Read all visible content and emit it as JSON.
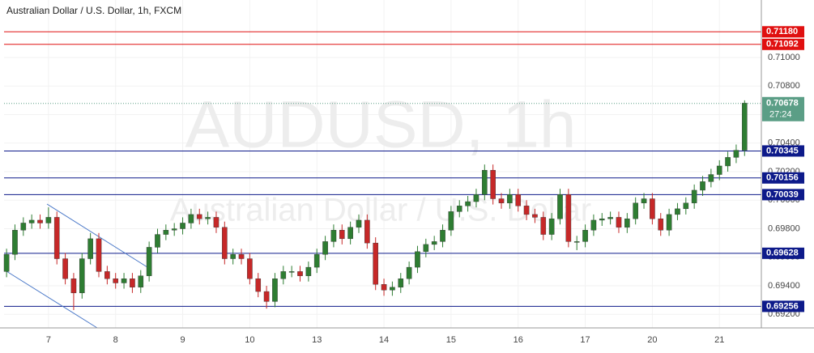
{
  "chart_data": {
    "type": "candlestick",
    "title": "Australian Dollar / U.S. Dollar, 1h, FXCM",
    "watermark": "AUDUSD, 1h",
    "watermark_subtitle": "Australian Dollar / U.S. Dollar",
    "up_color": "#2e7d32",
    "down_color": "#c62828",
    "ylim": [
      0.69105,
      0.71403
    ],
    "xlim": [
      -0.3,
      90
    ],
    "yticks": [
      {
        "value": 0.692,
        "label": "0.69200"
      },
      {
        "value": 0.694,
        "label": "0.69400"
      },
      {
        "value": 0.696,
        "label": "0.69600"
      },
      {
        "value": 0.698,
        "label": "0.69800"
      },
      {
        "value": 0.7,
        "label": "0.70000"
      },
      {
        "value": 0.702,
        "label": "0.70200"
      },
      {
        "value": 0.704,
        "label": "0.70400"
      },
      {
        "value": 0.706,
        "label": "0.70600"
      },
      {
        "value": 0.708,
        "label": "0.70800"
      },
      {
        "value": 0.71,
        "label": "0.71000"
      }
    ],
    "xticks": [
      {
        "value": 5,
        "label": "7"
      },
      {
        "value": 13,
        "label": "8"
      },
      {
        "value": 21,
        "label": "9"
      },
      {
        "value": 29,
        "label": "10"
      },
      {
        "value": 37,
        "label": "13"
      },
      {
        "value": 45,
        "label": "14"
      },
      {
        "value": 53,
        "label": "15"
      },
      {
        "value": 61,
        "label": "16"
      },
      {
        "value": 69,
        "label": "17"
      },
      {
        "value": 77,
        "label": "20"
      },
      {
        "value": 85,
        "label": "21"
      }
    ],
    "levels": [
      {
        "value": 0.7118,
        "label": "0.71180",
        "color": "#e01010"
      },
      {
        "value": 0.71092,
        "label": "0.71092",
        "color": "#e01010"
      },
      {
        "value": 0.70345,
        "label": "0.70345",
        "color": "#0d1a8a"
      },
      {
        "value": 0.70156,
        "label": "0.70156",
        "color": "#0d1a8a"
      },
      {
        "value": 0.70039,
        "label": "0.70039",
        "color": "#0d1a8a"
      },
      {
        "value": 0.69628,
        "label": "0.69628",
        "color": "#0d1a8a"
      },
      {
        "value": 0.69256,
        "label": "0.69256",
        "color": "#0d1a8a"
      }
    ],
    "last_price": {
      "value": 0.70678,
      "label": "0.70678",
      "countdown": "27:24",
      "color": "#5b9e86"
    },
    "ohlc": [
      [
        0.695,
        0.6966,
        0.6946,
        0.6962
      ],
      [
        0.6962,
        0.6983,
        0.6958,
        0.6979
      ],
      [
        0.6979,
        0.6988,
        0.6975,
        0.6984
      ],
      [
        0.6984,
        0.699,
        0.698,
        0.6986
      ],
      [
        0.6986,
        0.699,
        0.698,
        0.6984
      ],
      [
        0.6984,
        0.6995,
        0.698,
        0.6988
      ],
      [
        0.6988,
        0.6992,
        0.6955,
        0.6959
      ],
      [
        0.6959,
        0.6963,
        0.6941,
        0.6945
      ],
      [
        0.6945,
        0.6949,
        0.6923,
        0.6935
      ],
      [
        0.6935,
        0.6963,
        0.6931,
        0.6959
      ],
      [
        0.6959,
        0.6977,
        0.6955,
        0.6973
      ],
      [
        0.6973,
        0.6977,
        0.6946,
        0.695
      ],
      [
        0.695,
        0.6954,
        0.6941,
        0.6945
      ],
      [
        0.6945,
        0.6949,
        0.6938,
        0.6942
      ],
      [
        0.6942,
        0.6949,
        0.6938,
        0.6945
      ],
      [
        0.6945,
        0.6949,
        0.6935,
        0.6939
      ],
      [
        0.6939,
        0.6951,
        0.6935,
        0.6947
      ],
      [
        0.6947,
        0.6971,
        0.6943,
        0.6967
      ],
      [
        0.6967,
        0.698,
        0.6963,
        0.6976
      ],
      [
        0.6976,
        0.6983,
        0.6972,
        0.6979
      ],
      [
        0.6979,
        0.6984,
        0.6975,
        0.698
      ],
      [
        0.698,
        0.6988,
        0.6976,
        0.6984
      ],
      [
        0.6984,
        0.6994,
        0.698,
        0.699
      ],
      [
        0.699,
        0.6994,
        0.6983,
        0.6987
      ],
      [
        0.6987,
        0.6992,
        0.6983,
        0.6988
      ],
      [
        0.6988,
        0.6992,
        0.6977,
        0.6981
      ],
      [
        0.6981,
        0.6985,
        0.6955,
        0.6959
      ],
      [
        0.6959,
        0.6966,
        0.6955,
        0.6962
      ],
      [
        0.6962,
        0.6966,
        0.6955,
        0.6959
      ],
      [
        0.6959,
        0.6963,
        0.6941,
        0.6945
      ],
      [
        0.6945,
        0.6949,
        0.6932,
        0.6936
      ],
      [
        0.6936,
        0.694,
        0.6924,
        0.6929
      ],
      [
        0.6929,
        0.6949,
        0.6925,
        0.6945
      ],
      [
        0.6945,
        0.6954,
        0.6941,
        0.695
      ],
      [
        0.695,
        0.6954,
        0.6946,
        0.695
      ],
      [
        0.695,
        0.6954,
        0.6943,
        0.6947
      ],
      [
        0.6947,
        0.6957,
        0.6943,
        0.6953
      ],
      [
        0.6953,
        0.6966,
        0.6949,
        0.6962
      ],
      [
        0.6962,
        0.6975,
        0.6958,
        0.6971
      ],
      [
        0.6971,
        0.6983,
        0.6967,
        0.6979
      ],
      [
        0.6979,
        0.6983,
        0.6969,
        0.6973
      ],
      [
        0.6973,
        0.6985,
        0.6969,
        0.6981
      ],
      [
        0.6981,
        0.699,
        0.6977,
        0.6986
      ],
      [
        0.6986,
        0.699,
        0.6966,
        0.697
      ],
      [
        0.697,
        0.6974,
        0.6937,
        0.6941
      ],
      [
        0.6941,
        0.6945,
        0.6933,
        0.6937
      ],
      [
        0.6937,
        0.6943,
        0.6933,
        0.6939
      ],
      [
        0.6939,
        0.6949,
        0.6935,
        0.6945
      ],
      [
        0.6945,
        0.6957,
        0.6941,
        0.6953
      ],
      [
        0.6953,
        0.6968,
        0.6949,
        0.6964
      ],
      [
        0.6964,
        0.6973,
        0.696,
        0.6969
      ],
      [
        0.6969,
        0.6975,
        0.6965,
        0.6971
      ],
      [
        0.6971,
        0.6983,
        0.6967,
        0.6979
      ],
      [
        0.6979,
        0.6996,
        0.6975,
        0.6992
      ],
      [
        0.6992,
        0.7,
        0.6988,
        0.6996
      ],
      [
        0.6996,
        0.7003,
        0.6992,
        0.6999
      ],
      [
        0.6999,
        0.7008,
        0.6995,
        0.7004
      ],
      [
        0.7004,
        0.7025,
        0.7,
        0.7021
      ],
      [
        0.7021,
        0.7025,
        0.6997,
        0.7001
      ],
      [
        0.7001,
        0.7005,
        0.6994,
        0.6998
      ],
      [
        0.6998,
        0.7008,
        0.6994,
        0.7004
      ],
      [
        0.7004,
        0.7008,
        0.6992,
        0.6996
      ],
      [
        0.6996,
        0.7,
        0.6986,
        0.699
      ],
      [
        0.699,
        0.6994,
        0.6984,
        0.6988
      ],
      [
        0.6988,
        0.6992,
        0.6972,
        0.6976
      ],
      [
        0.6976,
        0.6991,
        0.6972,
        0.6987
      ],
      [
        0.6987,
        0.7008,
        0.6983,
        0.7004
      ],
      [
        0.7004,
        0.7008,
        0.6967,
        0.6971
      ],
      [
        0.6971,
        0.6975,
        0.6965,
        0.6971
      ],
      [
        0.6971,
        0.6983,
        0.6967,
        0.6979
      ],
      [
        0.6979,
        0.699,
        0.6975,
        0.6986
      ],
      [
        0.6986,
        0.6991,
        0.6982,
        0.6987
      ],
      [
        0.6987,
        0.6992,
        0.6983,
        0.6988
      ],
      [
        0.6988,
        0.6992,
        0.6977,
        0.6981
      ],
      [
        0.6981,
        0.6991,
        0.6977,
        0.6987
      ],
      [
        0.6987,
        0.7002,
        0.6983,
        0.6998
      ],
      [
        0.6998,
        0.7005,
        0.6994,
        0.7001
      ],
      [
        0.7001,
        0.7005,
        0.6983,
        0.6987
      ],
      [
        0.6987,
        0.6991,
        0.6975,
        0.6979
      ],
      [
        0.6979,
        0.6994,
        0.6975,
        0.699
      ],
      [
        0.699,
        0.6998,
        0.6986,
        0.6994
      ],
      [
        0.6994,
        0.7002,
        0.699,
        0.6998
      ],
      [
        0.6998,
        0.7011,
        0.6994,
        0.7007
      ],
      [
        0.7007,
        0.7017,
        0.7003,
        0.7013
      ],
      [
        0.7013,
        0.7022,
        0.7009,
        0.7018
      ],
      [
        0.7018,
        0.7028,
        0.7014,
        0.7024
      ],
      [
        0.7024,
        0.7034,
        0.702,
        0.703
      ],
      [
        0.703,
        0.7039,
        0.7026,
        0.7035
      ],
      [
        0.7035,
        0.707,
        0.7031,
        0.7068
      ]
    ]
  }
}
